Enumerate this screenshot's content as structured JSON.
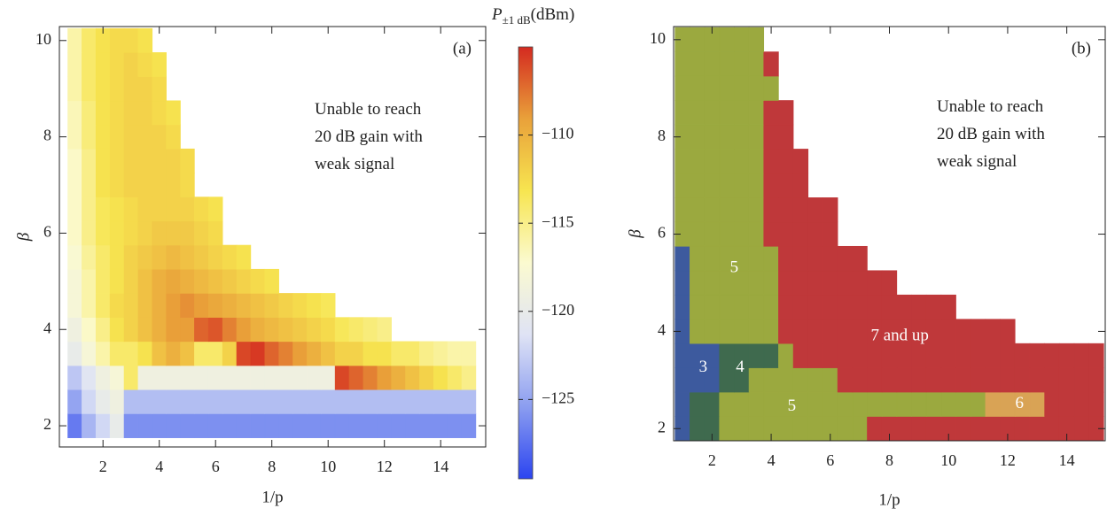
{
  "chart_data": [
    {
      "type": "heatmap",
      "title": "(a)",
      "xlabel": "1/p",
      "ylabel": "β",
      "annotation": [
        "Unable to reach",
        "20 dB gain with",
        "weak signal"
      ],
      "x": [
        1,
        1.5,
        2,
        2.5,
        3,
        3.5,
        4,
        4.5,
        5,
        5.5,
        6,
        6.5,
        7,
        7.5,
        8,
        8.5,
        9,
        9.5,
        10,
        10.5,
        11,
        11.5,
        12,
        12.5,
        13,
        13.5,
        14,
        14.5,
        15
      ],
      "y": [
        2,
        2.5,
        3,
        3.5,
        4,
        4.5,
        5,
        5.5,
        6,
        6.5,
        7,
        7.5,
        8,
        8.5,
        9,
        9.5,
        10
      ],
      "z": [
        [
          -127,
          -124,
          -122,
          -120,
          -126,
          -126,
          -126,
          -126,
          -126,
          -126,
          -126,
          -126,
          -126,
          -126,
          -126,
          -126,
          -126,
          -126,
          -126,
          -126,
          -126,
          -126,
          -126,
          -126,
          -126,
          -126,
          -126,
          -126,
          -126
        ],
        [
          -125,
          -122,
          -120,
          -119,
          -123.5,
          -123.5,
          -123.5,
          -123.5,
          -123.5,
          -123.5,
          -123.5,
          -123.5,
          -123.5,
          -123.5,
          -123.5,
          -123.5,
          -123.5,
          -123.5,
          -123.5,
          -123.5,
          -123.5,
          -123.5,
          -123.5,
          -123.5,
          -123.5,
          -123.5,
          -123.5,
          -123.5,
          -123.5
        ],
        [
          -123,
          -121,
          -119,
          -118,
          -114,
          -119,
          -119,
          -119,
          -119,
          -119,
          -119,
          -119,
          -119,
          -119,
          -119,
          -119,
          -119,
          -119,
          -119,
          -106,
          -107,
          -108,
          -109,
          -110,
          -111,
          -112,
          -113,
          -114,
          -115
        ],
        [
          -120,
          -118,
          -116,
          -114,
          -114,
          -113,
          -111,
          -110,
          -111,
          -114,
          -114,
          -112,
          -106,
          -105.5,
          -107,
          -108,
          -109,
          -110,
          -111,
          -112,
          -112,
          -113,
          -113,
          -114,
          -114,
          -115,
          -115.5,
          -116,
          -116
        ],
        [
          -119,
          -117,
          -115,
          -113,
          -112,
          -111,
          -110,
          -109,
          -109,
          -107,
          -106.5,
          -108,
          -109,
          -110,
          -110.5,
          -111,
          -111.5,
          -112,
          -112.5,
          -113.5,
          -114,
          -114.5,
          -115,
          null,
          null,
          null,
          null,
          null,
          null
        ],
        [
          -118,
          -116,
          -114,
          -112.5,
          -112,
          -111,
          -110,
          -109,
          -108.5,
          -109,
          -109.5,
          -110,
          -110.5,
          -111,
          -111.5,
          -112,
          -112.5,
          -113,
          -113.5,
          null,
          null,
          null,
          null,
          null,
          null,
          null,
          null,
          null,
          null
        ],
        [
          -118,
          -116,
          -114,
          -113,
          -112,
          -111,
          -110,
          -109.5,
          -110,
          -110.5,
          -111,
          -111.5,
          -112,
          -112.5,
          -113,
          null,
          null,
          null,
          null,
          null,
          null,
          null,
          null,
          null,
          null,
          null,
          null,
          null,
          null
        ],
        [
          -117.5,
          -115.5,
          -114,
          -113,
          -112,
          -111.5,
          -111,
          -110.5,
          -111,
          -111.5,
          -112,
          -112.5,
          -113,
          null,
          null,
          null,
          null,
          null,
          null,
          null,
          null,
          null,
          null,
          null,
          null,
          null,
          null,
          null,
          null
        ],
        [
          -117,
          -115,
          -113.5,
          -113,
          -112.5,
          -112,
          -111.5,
          -111.5,
          -111.5,
          -112,
          -112.5,
          null,
          null,
          null,
          null,
          null,
          null,
          null,
          null,
          null,
          null,
          null,
          null,
          null,
          null,
          null,
          null,
          null,
          null
        ],
        [
          -117,
          -115,
          -113.5,
          -113,
          -112.5,
          -112,
          -112,
          -112,
          -112,
          -112.5,
          -113,
          null,
          null,
          null,
          null,
          null,
          null,
          null,
          null,
          null,
          null,
          null,
          null,
          null,
          null,
          null,
          null,
          null,
          null
        ],
        [
          -117,
          -115,
          -113,
          -112.5,
          -112,
          -112,
          -112,
          -112,
          -112.5,
          null,
          null,
          null,
          null,
          null,
          null,
          null,
          null,
          null,
          null,
          null,
          null,
          null,
          null,
          null,
          null,
          null,
          null,
          null,
          null
        ],
        [
          -117,
          -115,
          -113,
          -112.5,
          -112,
          -112,
          -112,
          -112,
          -112.5,
          null,
          null,
          null,
          null,
          null,
          null,
          null,
          null,
          null,
          null,
          null,
          null,
          null,
          null,
          null,
          null,
          null,
          null,
          null,
          null
        ],
        [
          -116.5,
          -114.5,
          -113,
          -112.5,
          -112,
          -112,
          -112,
          -112.5,
          null,
          null,
          null,
          null,
          null,
          null,
          null,
          null,
          null,
          null,
          null,
          null,
          null,
          null,
          null,
          null,
          null,
          null,
          null,
          null,
          null
        ],
        [
          -116.5,
          -114.5,
          -113,
          -112.5,
          -112,
          -112,
          -112.5,
          -113,
          null,
          null,
          null,
          null,
          null,
          null,
          null,
          null,
          null,
          null,
          null,
          null,
          null,
          null,
          null,
          null,
          null,
          null,
          null,
          null,
          null
        ],
        [
          -116,
          -114,
          -113,
          -112.5,
          -112,
          -112,
          -112.5,
          null,
          null,
          null,
          null,
          null,
          null,
          null,
          null,
          null,
          null,
          null,
          null,
          null,
          null,
          null,
          null,
          null,
          null,
          null,
          null,
          null,
          null
        ],
        [
          -116,
          -114,
          -113,
          -112.5,
          -112,
          -112.5,
          -113,
          null,
          null,
          null,
          null,
          null,
          null,
          null,
          null,
          null,
          null,
          null,
          null,
          null,
          null,
          null,
          null,
          null,
          null,
          null,
          null,
          null,
          null
        ],
        [
          -116,
          -114,
          -113,
          -112.5,
          -112.5,
          -113,
          null,
          null,
          null,
          null,
          null,
          null,
          null,
          null,
          null,
          null,
          null,
          null,
          null,
          null,
          null,
          null,
          null,
          null,
          null,
          null,
          null,
          null,
          null
        ]
      ],
      "xlim": [
        0.45,
        15.6
      ],
      "ylim": [
        1.56,
        10.29
      ],
      "xticks": [
        2,
        4,
        6,
        8,
        10,
        12,
        14
      ],
      "yticks": [
        2,
        4,
        6,
        8,
        10
      ],
      "zlim": [
        -129.5,
        -105
      ],
      "zticks": [
        {
          "value": -110,
          "label": "−110"
        },
        {
          "value": -115,
          "label": "−115"
        },
        {
          "value": -120,
          "label": "−120"
        },
        {
          "value": -125,
          "label": "−125"
        }
      ],
      "colors": [
        "#2b44f0",
        "#8b9df0",
        "#dfe3f5",
        "#fbfad0",
        "#f7e550",
        "#e9a13a",
        "#d42a20"
      ],
      "colorbar_label": {
        "symbol": "P",
        "subscript": "±1 dB",
        "unit": "(dBm)"
      }
    },
    {
      "type": "heatmap",
      "title": "(b)",
      "xlabel": "1/p",
      "ylabel": "β",
      "annotation": [
        "Unable to reach",
        "20 dB gain with",
        "weak signal"
      ],
      "x": [
        1,
        1.5,
        2,
        2.5,
        3,
        3.5,
        4,
        4.5,
        5,
        5.5,
        6,
        6.5,
        7,
        7.5,
        8,
        8.5,
        9,
        9.5,
        10,
        10.5,
        11,
        11.5,
        12,
        12.5,
        13,
        13.5,
        14,
        14.5,
        15
      ],
      "y": [
        2,
        2.5,
        3,
        3.5,
        4,
        4.5,
        5,
        5.5,
        6,
        6.5,
        7,
        7.5,
        8,
        8.5,
        9,
        9.5,
        10
      ],
      "z": [
        [
          3,
          4,
          4,
          5,
          5,
          5,
          5,
          5,
          5,
          5,
          5,
          5,
          5,
          7,
          7,
          7,
          7,
          7,
          7,
          7,
          7,
          7,
          7,
          7,
          7,
          7,
          7,
          7,
          7
        ],
        [
          3,
          4,
          4,
          5,
          5,
          5,
          5,
          5,
          5,
          5,
          5,
          5,
          5,
          5,
          5,
          5,
          5,
          5,
          5,
          5,
          5,
          6,
          6,
          6,
          6,
          7,
          7,
          7,
          7
        ],
        [
          3,
          3,
          3,
          4,
          4,
          5,
          5,
          5,
          5,
          5,
          5,
          7,
          7,
          7,
          7,
          7,
          7,
          7,
          7,
          7,
          7,
          7,
          7,
          7,
          7,
          7,
          7,
          7,
          7
        ],
        [
          3,
          3,
          3,
          4,
          4,
          4,
          4,
          5,
          7,
          7,
          7,
          7,
          7,
          7,
          7,
          7,
          7,
          7,
          7,
          7,
          7,
          7,
          7,
          7,
          7,
          7,
          7,
          7,
          7
        ],
        [
          3,
          5,
          5,
          5,
          5,
          5,
          5,
          7,
          7,
          7,
          7,
          7,
          7,
          7,
          7,
          7,
          7,
          7,
          7,
          7,
          7,
          7,
          7,
          null,
          null,
          null,
          null,
          null,
          null
        ],
        [
          3,
          5,
          5,
          5,
          5,
          5,
          5,
          7,
          7,
          7,
          7,
          7,
          7,
          7,
          7,
          7,
          7,
          7,
          7,
          null,
          null,
          null,
          null,
          null,
          null,
          null,
          null,
          null,
          null
        ],
        [
          3,
          5,
          5,
          5,
          5,
          5,
          5,
          7,
          7,
          7,
          7,
          7,
          7,
          7,
          7,
          null,
          null,
          null,
          null,
          null,
          null,
          null,
          null,
          null,
          null,
          null,
          null,
          null,
          null
        ],
        [
          3,
          5,
          5,
          5,
          5,
          5,
          5,
          7,
          7,
          7,
          7,
          7,
          7,
          null,
          null,
          null,
          null,
          null,
          null,
          null,
          null,
          null,
          null,
          null,
          null,
          null,
          null,
          null,
          null
        ],
        [
          5,
          5,
          5,
          5,
          5,
          5,
          7,
          7,
          7,
          7,
          7,
          null,
          null,
          null,
          null,
          null,
          null,
          null,
          null,
          null,
          null,
          null,
          null,
          null,
          null,
          null,
          null,
          null,
          null
        ],
        [
          5,
          5,
          5,
          5,
          5,
          5,
          7,
          7,
          7,
          7,
          7,
          null,
          null,
          null,
          null,
          null,
          null,
          null,
          null,
          null,
          null,
          null,
          null,
          null,
          null,
          null,
          null,
          null,
          null
        ],
        [
          5,
          5,
          5,
          5,
          5,
          5,
          7,
          7,
          7,
          null,
          null,
          null,
          null,
          null,
          null,
          null,
          null,
          null,
          null,
          null,
          null,
          null,
          null,
          null,
          null,
          null,
          null,
          null,
          null
        ],
        [
          5,
          5,
          5,
          5,
          5,
          5,
          7,
          7,
          7,
          null,
          null,
          null,
          null,
          null,
          null,
          null,
          null,
          null,
          null,
          null,
          null,
          null,
          null,
          null,
          null,
          null,
          null,
          null,
          null
        ],
        [
          5,
          5,
          5,
          5,
          5,
          5,
          7,
          7,
          null,
          null,
          null,
          null,
          null,
          null,
          null,
          null,
          null,
          null,
          null,
          null,
          null,
          null,
          null,
          null,
          null,
          null,
          null,
          null,
          null
        ],
        [
          5,
          5,
          5,
          5,
          5,
          5,
          7,
          7,
          null,
          null,
          null,
          null,
          null,
          null,
          null,
          null,
          null,
          null,
          null,
          null,
          null,
          null,
          null,
          null,
          null,
          null,
          null,
          null,
          null
        ],
        [
          5,
          5,
          5,
          5,
          5,
          5,
          5,
          null,
          null,
          null,
          null,
          null,
          null,
          null,
          null,
          null,
          null,
          null,
          null,
          null,
          null,
          null,
          null,
          null,
          null,
          null,
          null,
          null,
          null
        ],
        [
          5,
          5,
          5,
          5,
          5,
          5,
          7,
          null,
          null,
          null,
          null,
          null,
          null,
          null,
          null,
          null,
          null,
          null,
          null,
          null,
          null,
          null,
          null,
          null,
          null,
          null,
          null,
          null,
          null
        ],
        [
          5,
          5,
          5,
          5,
          5,
          5,
          null,
          null,
          null,
          null,
          null,
          null,
          null,
          null,
          null,
          null,
          null,
          null,
          null,
          null,
          null,
          null,
          null,
          null,
          null,
          null,
          null,
          null,
          null
        ]
      ],
      "classes": [
        3,
        4,
        5,
        6,
        7
      ],
      "class_colors": [
        "#3d5a9e",
        "#3f6a4e",
        "#9ba93f",
        "#d9a355",
        "#bf383a"
      ],
      "region_labels": [
        "3",
        "4",
        "5",
        "5",
        "6",
        "7 and up"
      ],
      "xlim": [
        0.7,
        15.3
      ],
      "ylim": [
        1.75,
        10.27
      ],
      "xticks": [
        2,
        4,
        6,
        8,
        10,
        12,
        14
      ],
      "yticks": [
        2,
        4,
        6,
        8,
        10
      ]
    }
  ]
}
